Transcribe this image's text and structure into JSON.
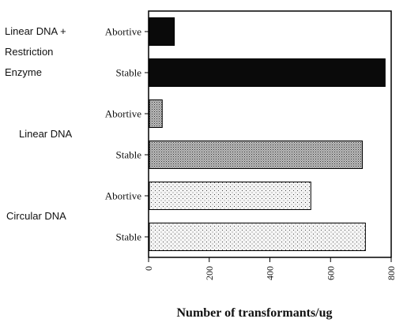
{
  "chart_data": {
    "type": "bar",
    "orientation": "horizontal",
    "xlabel": "Number of transformants/ug",
    "xlim": [
      0,
      800
    ],
    "xticks": [
      0,
      200,
      400,
      600,
      800
    ],
    "groups": [
      {
        "label_lines": [
          "Linear DNA +",
          "Restriction",
          "Enzyme"
        ],
        "bars": [
          {
            "category": "Abortive",
            "value": 85,
            "pattern": "solid-black"
          },
          {
            "category": "Stable",
            "value": 780,
            "pattern": "solid-black"
          }
        ]
      },
      {
        "label_lines": [
          "Linear DNA"
        ],
        "bars": [
          {
            "category": "Abortive",
            "value": 45,
            "pattern": "dense-dots"
          },
          {
            "category": "Stable",
            "value": 705,
            "pattern": "dense-dots"
          }
        ]
      },
      {
        "label_lines": [
          "Circular  DNA"
        ],
        "bars": [
          {
            "category": "Abortive",
            "value": 535,
            "pattern": "sparse-dots"
          },
          {
            "category": "Stable",
            "value": 715,
            "pattern": "sparse-dots"
          }
        ]
      }
    ]
  }
}
